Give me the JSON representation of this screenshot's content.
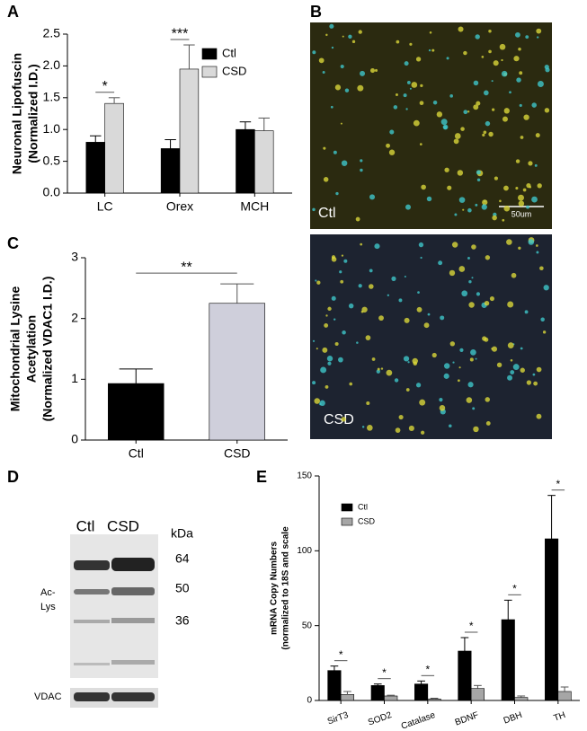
{
  "panel_labels": [
    "A",
    "B",
    "C",
    "D",
    "E"
  ],
  "chart_data": [
    {
      "type": "bar",
      "y_label": [
        "Neuronal Lipofuscin",
        "(Normalized I.D.)"
      ],
      "categories": [
        "LC",
        "Orex",
        "MCH"
      ],
      "series": [
        {
          "name": "Ctl",
          "color": "#000000",
          "values": [
            0.8,
            0.7,
            1.0
          ],
          "errors": [
            0.1,
            0.14,
            0.12
          ]
        },
        {
          "name": "CSD",
          "color": "#d9d9d9",
          "values": [
            1.41,
            1.95,
            0.98
          ],
          "errors": [
            0.09,
            0.38,
            0.2
          ]
        }
      ],
      "ylim": [
        0,
        2.5
      ],
      "yticks": [
        {
          "value": 0,
          "label": "0.0"
        },
        0.5,
        {
          "value": 1,
          "label": "1.0"
        },
        1.5,
        {
          "value": 2,
          "label": "2.0"
        },
        2.5
      ],
      "annotations": [
        {
          "text": "*",
          "category": "LC"
        },
        {
          "text": "***",
          "category": "Orex"
        }
      ]
    },
    {
      "type": "bar",
      "y_label": [
        "Mitochondrial Lysine",
        "Acetylation",
        "(Normalized VDAC1 I.D.)"
      ],
      "categories": [
        "Ctl",
        "CSD"
      ],
      "series": [
        {
          "colors": [
            "#000000",
            "#cfcfdb"
          ],
          "values": [
            0.93,
            2.25
          ],
          "errors": [
            0.24,
            0.32
          ]
        }
      ],
      "ylim": [
        0,
        3
      ],
      "yticks": [
        0,
        1,
        2,
        3
      ],
      "annotations": [
        {
          "text": "**"
        }
      ]
    },
    {
      "type": "bar",
      "y_label": [
        "mRNA Copy Numbers",
        "(normalized to 18S and scale"
      ],
      "categories": [
        "SirT3",
        "SOD2",
        "Catalase",
        "BDNF",
        "DBH",
        "TH"
      ],
      "series": [
        {
          "name": "Ctl",
          "color": "#000000",
          "values": [
            20,
            10,
            11,
            33,
            54,
            108
          ],
          "errors": [
            3,
            1,
            2,
            9,
            13,
            29
          ]
        },
        {
          "name": "CSD",
          "color": "#a6a6a6",
          "values": [
            4,
            3,
            1,
            8,
            2,
            6
          ],
          "errors": [
            2,
            0.5,
            0.5,
            2,
            1,
            3
          ]
        }
      ],
      "ylim": [
        0,
        150
      ],
      "yticks": [
        0,
        50,
        100,
        150
      ],
      "annotations": [
        {
          "text": "*",
          "category": "SirT3"
        },
        {
          "text": "*",
          "category": "SOD2"
        },
        {
          "text": "*",
          "category": "Catalase"
        },
        {
          "text": "*",
          "category": "BDNF"
        },
        {
          "text": "*",
          "category": "DBH"
        },
        {
          "text": "*",
          "category": "TH"
        }
      ]
    }
  ],
  "microscopy": {
    "labels": [
      "Ctl",
      "CSD"
    ],
    "scale_bar": "50um"
  },
  "blot": {
    "lanes": [
      "Ctl",
      "CSD"
    ],
    "unit": "kDa",
    "markers": [
      64,
      50,
      36
    ],
    "protein": [
      "Ac-",
      "Lys"
    ],
    "loading": "VDAC"
  }
}
